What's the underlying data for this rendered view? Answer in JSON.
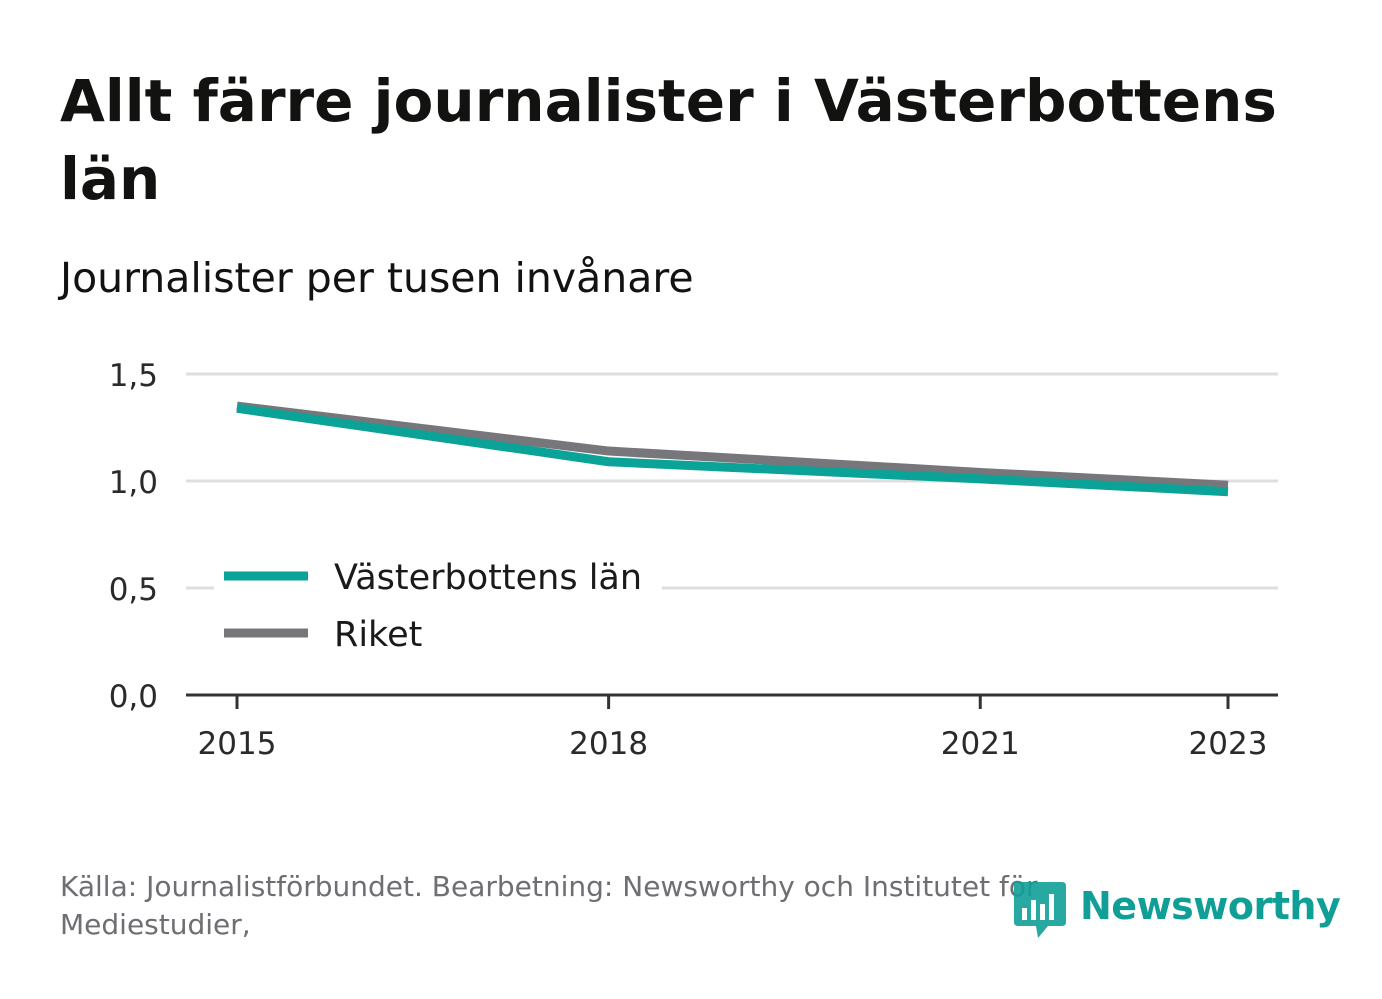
{
  "header": {
    "title": "Allt färre journalister i Västerbottens län",
    "subtitle": "Journalister per tusen invånare"
  },
  "footer": {
    "source": "Källa: Journalistförbundet. Bearbetning: Newsworthy och Institutet för Mediestudier,",
    "brand": "Newsworthy"
  },
  "colors": {
    "vasterbotten": "#0ba398",
    "riket": "#77767b",
    "grid": "#dedede",
    "axis": "#333333",
    "brand": "#0f9f97"
  },
  "chart_data": {
    "type": "line",
    "title": "Allt färre journalister i Västerbottens län",
    "subtitle": "Journalister per tusen invånare",
    "x": [
      2015,
      2018,
      2021,
      2023
    ],
    "xticks": [
      "2015",
      "2018",
      "2021",
      "2023"
    ],
    "yticks": [
      "0,0",
      "0,5",
      "1,0",
      "1,5"
    ],
    "ylim": [
      0,
      1.5
    ],
    "grid": true,
    "legend_position": "bottom-left",
    "series": [
      {
        "name": "Västerbottens län",
        "values": [
          1.34,
          1.09,
          1.01,
          0.95
        ],
        "color": "#0ba398"
      },
      {
        "name": "Riket",
        "values": [
          1.35,
          1.14,
          1.04,
          0.98
        ],
        "color": "#77767b"
      }
    ]
  }
}
